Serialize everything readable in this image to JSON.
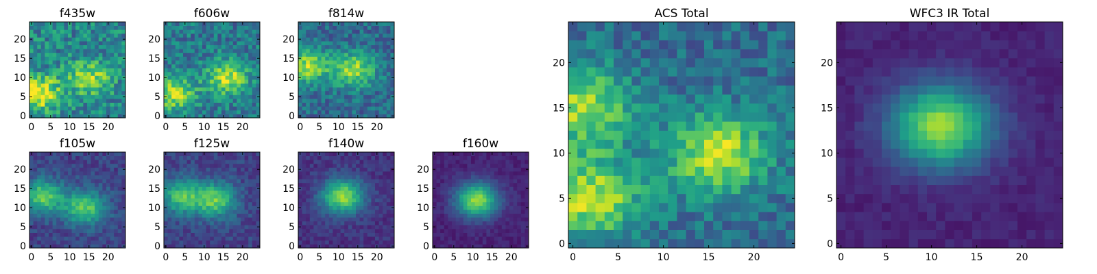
{
  "chart_data": [
    {
      "id": "f435w",
      "type": "heatmap",
      "title": "f435w",
      "colormap": "viridis",
      "grid_size": 25,
      "xticks": [
        0,
        5,
        10,
        15,
        20
      ],
      "yticks": [
        0,
        5,
        10,
        15,
        20
      ],
      "xlim": [
        0,
        24
      ],
      "ylim": [
        0,
        24
      ],
      "seed": 11,
      "bright_regions": [
        [
          2,
          6,
          0.55
        ],
        [
          15,
          10,
          0.4
        ]
      ],
      "base_level": 0.45,
      "noise_level": 0.4
    },
    {
      "id": "f606w",
      "type": "heatmap",
      "title": "f606w",
      "colormap": "viridis",
      "grid_size": 25,
      "xticks": [
        0,
        5,
        10,
        15,
        20
      ],
      "yticks": [
        0,
        5,
        10,
        15,
        20
      ],
      "xlim": [
        0,
        24
      ],
      "ylim": [
        0,
        24
      ],
      "seed": 23,
      "bright_regions": [
        [
          2,
          6,
          0.5
        ],
        [
          16,
          10,
          0.5
        ]
      ],
      "base_level": 0.4,
      "noise_level": 0.35
    },
    {
      "id": "f814w",
      "type": "heatmap",
      "title": "f814w",
      "colormap": "viridis",
      "grid_size": 25,
      "xticks": [
        0,
        5,
        10,
        15,
        20
      ],
      "yticks": [
        0,
        5,
        10,
        15,
        20
      ],
      "xlim": [
        0,
        24
      ],
      "ylim": [
        0,
        24
      ],
      "seed": 37,
      "bright_regions": [
        [
          2,
          13,
          0.5
        ],
        [
          14,
          12,
          0.5
        ]
      ],
      "base_level": 0.35,
      "noise_level": 0.3
    },
    {
      "id": "f105w",
      "type": "heatmap",
      "title": "f105w",
      "colormap": "viridis",
      "grid_size": 25,
      "xticks": [
        0,
        5,
        10,
        15,
        20
      ],
      "yticks": [
        0,
        5,
        10,
        15,
        20
      ],
      "xlim": [
        0,
        24
      ],
      "ylim": [
        0,
        24
      ],
      "seed": 41,
      "bright_regions": [
        [
          3,
          13,
          0.55
        ],
        [
          14,
          10,
          0.55
        ]
      ],
      "base_level": 0.2,
      "noise_level": 0.18
    },
    {
      "id": "f125w",
      "type": "heatmap",
      "title": "f125w",
      "colormap": "viridis",
      "grid_size": 25,
      "xticks": [
        0,
        5,
        10,
        15,
        20
      ],
      "yticks": [
        0,
        5,
        10,
        15,
        20
      ],
      "xlim": [
        0,
        24
      ],
      "ylim": [
        0,
        24
      ],
      "seed": 53,
      "bright_regions": [
        [
          4,
          13,
          0.5
        ],
        [
          13,
          12,
          0.55
        ]
      ],
      "base_level": 0.2,
      "noise_level": 0.18
    },
    {
      "id": "f140w",
      "type": "heatmap",
      "title": "f140w",
      "colormap": "viridis",
      "grid_size": 25,
      "xticks": [
        0,
        5,
        10,
        15,
        20
      ],
      "yticks": [
        0,
        5,
        10,
        15,
        20
      ],
      "xlim": [
        0,
        24
      ],
      "ylim": [
        0,
        24
      ],
      "seed": 67,
      "bright_regions": [
        [
          11,
          13,
          0.7
        ]
      ],
      "base_level": 0.15,
      "noise_level": 0.14
    },
    {
      "id": "f160w",
      "type": "heatmap",
      "title": "f160w",
      "colormap": "viridis",
      "grid_size": 25,
      "xticks": [
        0,
        5,
        10,
        15,
        20
      ],
      "yticks": [
        0,
        5,
        10,
        15,
        20
      ],
      "xlim": [
        0,
        24
      ],
      "ylim": [
        0,
        24
      ],
      "seed": 79,
      "bright_regions": [
        [
          11,
          12,
          0.75
        ]
      ],
      "base_level": 0.1,
      "noise_level": 0.1
    },
    {
      "id": "acs_total",
      "type": "heatmap",
      "title": "ACS Total",
      "colormap": "viridis",
      "grid_size": 25,
      "xticks": [
        0,
        5,
        10,
        15,
        20
      ],
      "yticks": [
        0,
        5,
        10,
        15,
        20
      ],
      "xlim": [
        0,
        24
      ],
      "ylim": [
        0,
        24
      ],
      "seed": 97,
      "bright_regions": [
        [
          1,
          15,
          0.5
        ],
        [
          2,
          5,
          0.55
        ],
        [
          16,
          10,
          0.55
        ]
      ],
      "base_level": 0.35,
      "noise_level": 0.28
    },
    {
      "id": "wfc3_ir_total",
      "type": "heatmap",
      "title": "WFC3 IR Total",
      "colormap": "viridis",
      "grid_size": 25,
      "xticks": [
        0,
        5,
        10,
        15,
        20
      ],
      "yticks": [
        0,
        5,
        10,
        15,
        20
      ],
      "xlim": [
        0,
        24
      ],
      "ylim": [
        0,
        24
      ],
      "seed": 113,
      "bright_regions": [
        [
          11,
          13,
          0.75
        ]
      ],
      "base_level": 0.1,
      "noise_level": 0.08
    }
  ]
}
